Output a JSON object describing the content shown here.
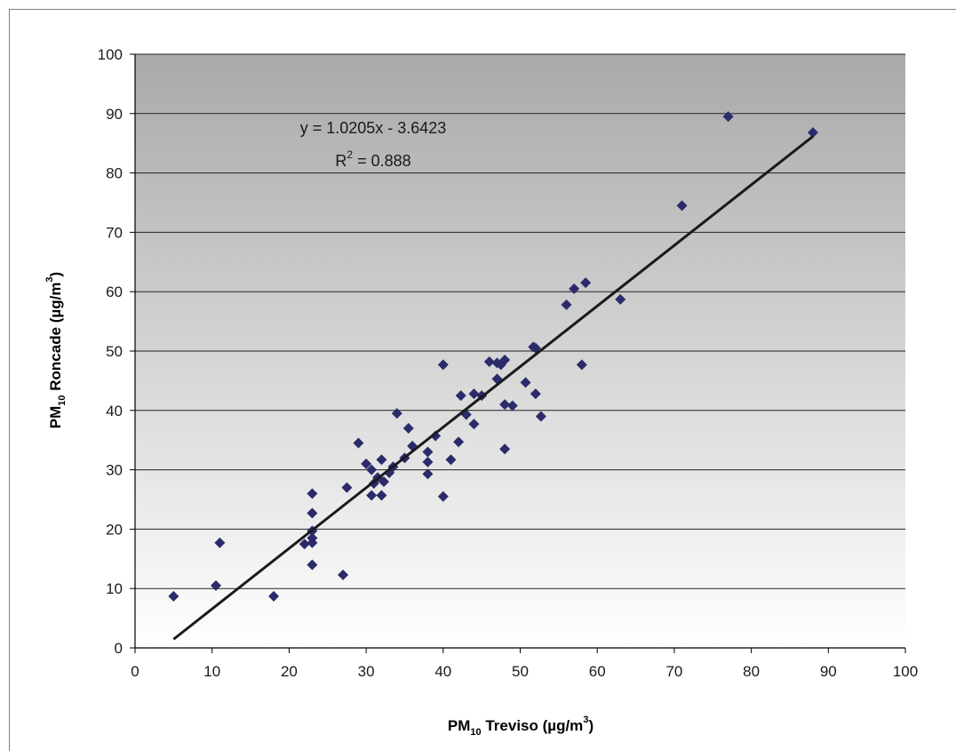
{
  "chart_data": {
    "type": "scatter",
    "title": "",
    "xlabel": {
      "prefix": "PM",
      "sub": "10",
      "text": " Treviso (µg/m",
      "sup": "3",
      "suffix": ")"
    },
    "ylabel": {
      "prefix": "PM",
      "sub": "10",
      "text": " Roncade (µg/m",
      "sup": "3",
      "suffix": ")"
    },
    "xlim": [
      0,
      100
    ],
    "ylim": [
      0,
      100
    ],
    "xticks": [
      0,
      10,
      20,
      30,
      40,
      50,
      60,
      70,
      80,
      90,
      100
    ],
    "yticks": [
      0,
      10,
      20,
      30,
      40,
      50,
      60,
      70,
      80,
      90,
      100
    ],
    "grid": "horizontal",
    "legend": "none",
    "trendline": {
      "slope": 1.0205,
      "intercept": -3.6423,
      "x_range": [
        5,
        88
      ],
      "equation": "y = 1.0205x - 3.6423",
      "r2_prefix": "R",
      "r2_sup": "2",
      "r2_suffix": " = 0.888"
    },
    "colors": {
      "marker": "#2b2b6b",
      "trendline": "#1a1a1a",
      "plot_bg_top": "#a9a9a9",
      "plot_bg_bottom": "#ffffff",
      "gridline": "#222222"
    },
    "points": [
      [
        5,
        8.7
      ],
      [
        10.5,
        10.5
      ],
      [
        11,
        17.7
      ],
      [
        18,
        8.7
      ],
      [
        22,
        17.5
      ],
      [
        23,
        26
      ],
      [
        23,
        22.7
      ],
      [
        23,
        19.7
      ],
      [
        23,
        18.5
      ],
      [
        23,
        17.7
      ],
      [
        23,
        14
      ],
      [
        27,
        12.3
      ],
      [
        27.5,
        27
      ],
      [
        29,
        34.5
      ],
      [
        30,
        31
      ],
      [
        30.7,
        30
      ],
      [
        30.7,
        25.7
      ],
      [
        31,
        27.7
      ],
      [
        31.5,
        28.7
      ],
      [
        32,
        31.7
      ],
      [
        32,
        25.7
      ],
      [
        32.3,
        28
      ],
      [
        33,
        29.5
      ],
      [
        33.5,
        30.5
      ],
      [
        34,
        39.5
      ],
      [
        35,
        32
      ],
      [
        35.5,
        37
      ],
      [
        36,
        34
      ],
      [
        38,
        33
      ],
      [
        38,
        31.3
      ],
      [
        38,
        29.3
      ],
      [
        39,
        35.7
      ],
      [
        40,
        47.7
      ],
      [
        40,
        25.5
      ],
      [
        41,
        31.7
      ],
      [
        42,
        34.7
      ],
      [
        42.3,
        42.5
      ],
      [
        43,
        39.3
      ],
      [
        44,
        42.8
      ],
      [
        44,
        37.7
      ],
      [
        45,
        42.5
      ],
      [
        46,
        48.2
      ],
      [
        47,
        48
      ],
      [
        47,
        45.3
      ],
      [
        47.5,
        47.7
      ],
      [
        48,
        48.5
      ],
      [
        48,
        41
      ],
      [
        48,
        33.5
      ],
      [
        49,
        40.8
      ],
      [
        50.7,
        44.7
      ],
      [
        51.7,
        50.7
      ],
      [
        52,
        50.5
      ],
      [
        52,
        42.8
      ],
      [
        52.7,
        39
      ],
      [
        56,
        57.8
      ],
      [
        57,
        60.5
      ],
      [
        58,
        47.7
      ],
      [
        58.5,
        61.5
      ],
      [
        63,
        58.7
      ],
      [
        71,
        74.5
      ],
      [
        77,
        89.5
      ],
      [
        88,
        86.8
      ]
    ]
  }
}
